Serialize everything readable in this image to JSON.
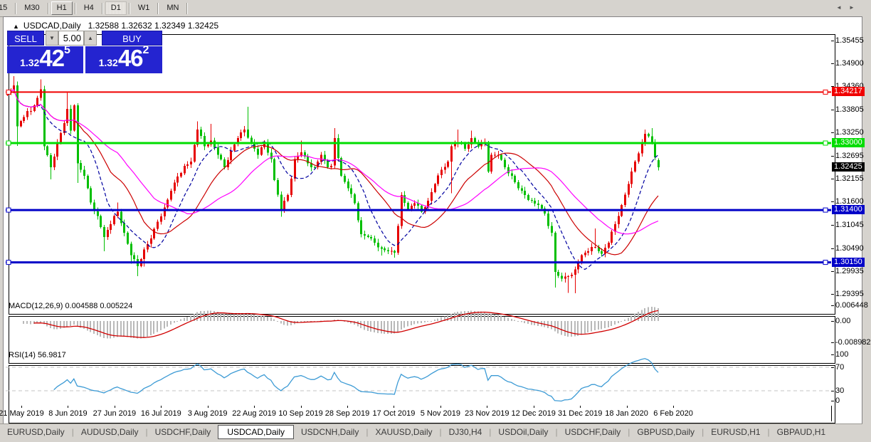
{
  "toolbar": {
    "timeframes": [
      {
        "label": "15",
        "state": "clipped"
      },
      {
        "label": "M30",
        "state": "normal"
      },
      {
        "label": "H1",
        "state": "raised"
      },
      {
        "label": "H4",
        "state": "normal"
      },
      {
        "label": "D1",
        "state": "active"
      },
      {
        "label": "W1",
        "state": "normal"
      },
      {
        "label": "MN",
        "state": "normal"
      }
    ]
  },
  "header": {
    "collapse_arrow": "▲",
    "symbol": "USDCAD,Daily",
    "ohlc": "1.32588 1.32632 1.32349 1.32425"
  },
  "trade": {
    "sell_label": "SELL",
    "buy_label": "BUY",
    "volume": "5.00",
    "spinner_down": "▼",
    "spinner_up": "▲",
    "sell": {
      "prefix": "1.32",
      "big": "42",
      "sup": "5"
    },
    "buy": {
      "prefix": "1.32",
      "big": "46",
      "sup": "2"
    },
    "panel_color": "#2424d0"
  },
  "panes": {
    "macd_label": "MACD(12,26,9) 0.004588 0.005224",
    "rsi_label": "RSI(14) 56.9817"
  },
  "chart_data": {
    "type": "candlestick",
    "symbol": "USDCAD",
    "timeframe": "Daily",
    "title_ohlc": {
      "open": 1.32588,
      "high": 1.32632,
      "low": 1.32349,
      "close": 1.32425
    },
    "bid": 1.32425,
    "ask": 1.32462,
    "y_ticks": [
      "1.35455",
      "1.34900",
      "1.34360",
      "1.33805",
      "1.33250",
      "1.32695",
      "1.32155",
      "1.31600",
      "1.31045",
      "1.30490",
      "1.29935",
      "1.29395"
    ],
    "x_labels": [
      "21 May 2019",
      "8 Jun 2019",
      "27 Jun 2019",
      "16 Jul 2019",
      "3 Aug 2019",
      "22 Aug 2019",
      "10 Sep 2019",
      "28 Sep 2019",
      "17 Oct 2019",
      "5 Nov 2019",
      "23 Nov 2019",
      "12 Dec 2019",
      "31 Dec 2019",
      "18 Jan 2020",
      "6 Feb 2020"
    ],
    "horizontal_lines": [
      {
        "price": 1.34217,
        "label": "1.34217",
        "color": "#f00000",
        "thickness": 2
      },
      {
        "price": 1.33,
        "label": "1.33000",
        "color": "#00dd00",
        "thickness": 3
      },
      {
        "price": 1.314,
        "label": "1.31400",
        "color": "#0000c8",
        "thickness": 3
      },
      {
        "price": 1.3015,
        "label": "1.30150",
        "color": "#0000c8",
        "thickness": 3
      }
    ],
    "current_price_label": {
      "value": "1.32425",
      "bg": "#000000"
    },
    "candle_colors": {
      "bullish": "#e60000",
      "bearish": "#00bf00"
    },
    "moving_averages": [
      {
        "period": 10,
        "color": "#0000a0",
        "style": "dashed"
      },
      {
        "period": 21,
        "color": "#cc0000",
        "style": "solid"
      },
      {
        "period": 34,
        "color": "#ff00ff",
        "style": "solid"
      }
    ],
    "candles_count": 196,
    "first_open": 1.3415,
    "close_anchors": [
      [
        0,
        1.342
      ],
      [
        2,
        1.3438
      ],
      [
        3,
        1.334
      ],
      [
        5,
        1.3362
      ],
      [
        8,
        1.339
      ],
      [
        10,
        1.3428
      ],
      [
        11,
        1.3292
      ],
      [
        13,
        1.3242
      ],
      [
        15,
        1.33
      ],
      [
        17,
        1.3348
      ],
      [
        18,
        1.3382
      ],
      [
        19,
        1.333
      ],
      [
        20,
        1.339
      ],
      [
        21,
        1.3252
      ],
      [
        23,
        1.3222
      ],
      [
        25,
        1.3158
      ],
      [
        27,
        1.3126
      ],
      [
        29,
        1.3076
      ],
      [
        31,
        1.3106
      ],
      [
        33,
        1.3136
      ],
      [
        35,
        1.3086
      ],
      [
        37,
        1.3032
      ],
      [
        39,
        1.3006
      ],
      [
        41,
        1.3046
      ],
      [
        43,
        1.3072
      ],
      [
        45,
        1.3112
      ],
      [
        47,
        1.3146
      ],
      [
        49,
        1.3186
      ],
      [
        51,
        1.322
      ],
      [
        53,
        1.3246
      ],
      [
        55,
        1.3256
      ],
      [
        57,
        1.3332
      ],
      [
        59,
        1.3292
      ],
      [
        61,
        1.3306
      ],
      [
        63,
        1.3272
      ],
      [
        65,
        1.3242
      ],
      [
        67,
        1.3282
      ],
      [
        69,
        1.3312
      ],
      [
        71,
        1.3332
      ],
      [
        73,
        1.3302
      ],
      [
        75,
        1.3272
      ],
      [
        77,
        1.3302
      ],
      [
        79,
        1.3262
      ],
      [
        80,
        1.3212
      ],
      [
        82,
        1.3142
      ],
      [
        84,
        1.3176
      ],
      [
        86,
        1.3262
      ],
      [
        88,
        1.3278
      ],
      [
        90,
        1.3252
      ],
      [
        92,
        1.3242
      ],
      [
        94,
        1.3272
      ],
      [
        96,
        1.3242
      ],
      [
        97,
        1.3246
      ],
      [
        98,
        1.3312
      ],
      [
        100,
        1.3222
      ],
      [
        102,
        1.3192
      ],
      [
        104,
        1.3156
      ],
      [
        106,
        1.3082
      ],
      [
        108,
        1.3076
      ],
      [
        110,
        1.3062
      ],
      [
        112,
        1.3048
      ],
      [
        114,
        1.3042
      ],
      [
        116,
        1.3038
      ],
      [
        118,
        1.3176
      ],
      [
        120,
        1.3142
      ],
      [
        122,
        1.3156
      ],
      [
        124,
        1.3136
      ],
      [
        126,
        1.3162
      ],
      [
        128,
        1.3202
      ],
      [
        130,
        1.3236
      ],
      [
        132,
        1.3256
      ],
      [
        133,
        1.3292
      ],
      [
        135,
        1.3302
      ],
      [
        137,
        1.3286
      ],
      [
        139,
        1.3312
      ],
      [
        141,
        1.3292
      ],
      [
        143,
        1.3302
      ],
      [
        144,
        1.3232
      ],
      [
        145,
        1.3272
      ],
      [
        147,
        1.3272
      ],
      [
        149,
        1.3242
      ],
      [
        151,
        1.3222
      ],
      [
        153,
        1.3192
      ],
      [
        155,
        1.3176
      ],
      [
        157,
        1.3162
      ],
      [
        159,
        1.3152
      ],
      [
        161,
        1.3132
      ],
      [
        162,
        1.3102
      ],
      [
        163,
        1.3086
      ],
      [
        164,
        1.2992
      ],
      [
        166,
        1.2976
      ],
      [
        168,
        1.2982
      ],
      [
        170,
        1.2998
      ],
      [
        172,
        1.3032
      ],
      [
        174,
        1.3042
      ],
      [
        176,
        1.3052
      ],
      [
        178,
        1.3036
      ],
      [
        180,
        1.3062
      ],
      [
        182,
        1.3106
      ],
      [
        184,
        1.3152
      ],
      [
        186,
        1.3202
      ],
      [
        188,
        1.3256
      ],
      [
        190,
        1.3302
      ],
      [
        191,
        1.3322
      ],
      [
        192,
        1.3316
      ],
      [
        193,
        1.3302
      ],
      [
        194,
        1.3266
      ],
      [
        195,
        1.32425
      ]
    ],
    "wick_overrides": {
      "2": {
        "h": 1.346
      },
      "3": {
        "l": 1.3293
      },
      "10": {
        "h": 1.3452
      },
      "13": {
        "l": 1.3213
      },
      "18": {
        "h": 1.342
      },
      "21": {
        "l": 1.3205
      },
      "29": {
        "l": 1.3042
      },
      "33": {
        "h": 1.3158
      },
      "37": {
        "l": 1.3012
      },
      "39": {
        "l": 1.2982
      },
      "41": {
        "l": 1.3005
      },
      "57": {
        "h": 1.3352
      },
      "61": {
        "h": 1.3346
      },
      "72": {
        "h": 1.3387
      },
      "82": {
        "l": 1.3124
      },
      "88": {
        "h": 1.3306
      },
      "98": {
        "h": 1.3336
      },
      "112": {
        "l": 1.3031
      },
      "116": {
        "l": 1.3026
      },
      "133": {
        "l": 1.318
      },
      "135": {
        "h": 1.3332
      },
      "139": {
        "h": 1.333
      },
      "164": {
        "l": 1.2955
      },
      "168": {
        "l": 1.2942
      },
      "170": {
        "l": 1.2941
      },
      "176": {
        "h": 1.3096
      },
      "191": {
        "h": 1.3332
      },
      "193": {
        "h": 1.3336
      }
    },
    "macd": {
      "params": "12,26,9",
      "value": 0.004588,
      "signal_value": 0.005224,
      "axis": [
        {
          "v": 0.006448,
          "label": "0.006448"
        },
        {
          "v": 0.0,
          "label": "0.00"
        },
        {
          "v": -0.008982,
          "label": "-0.008982"
        }
      ],
      "histogram_color": "#b9b9b9",
      "signal_color": "#d00000"
    },
    "rsi": {
      "params": "14",
      "value": 56.9817,
      "axis": [
        {
          "v": 100,
          "label": "100"
        },
        {
          "v": 70,
          "label": "70"
        },
        {
          "v": 30,
          "label": "30"
        },
        {
          "v": 0,
          "label": "0"
        }
      ],
      "levels": [
        70,
        30
      ],
      "line_color": "#3d9bd5",
      "level_color": "#c4c4c4"
    }
  },
  "tabs": {
    "items": [
      "EURUSD,Daily",
      "AUDUSD,Daily",
      "USDCHF,Daily",
      "USDCAD,Daily",
      "USDCNH,Daily",
      "XAUUSD,Daily",
      "DJ30,H4",
      "USDOil,Daily",
      "USDCHF,Daily",
      "GBPUSD,Daily",
      "EURUSD,H1",
      "GBPAUD,H1"
    ],
    "active_index": 3,
    "scroll_left_icon": "◄",
    "scroll_right_icon": "►"
  }
}
